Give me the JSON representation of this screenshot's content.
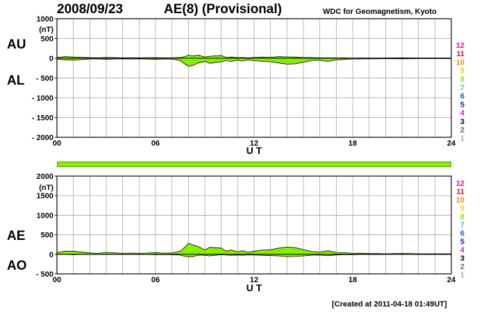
{
  "header": {
    "date": "2008/09/23",
    "title": "AE(8)  (Provisional)",
    "org": "WDC for Geomagnetism, Kyoto"
  },
  "footer": {
    "created": "[Created at 2011-04-18 01:49UT]"
  },
  "colors": {
    "fill": "#88ee00",
    "grid": "#9a9a9a",
    "stack_bar": "#88ee00"
  },
  "legend_colors": [
    "#ee1177",
    "#dd1111",
    "#ee8800",
    "#dddd00",
    "#88ee00",
    "#22ccee",
    "#1155ee",
    "#2222aa",
    "#cc22cc",
    "#000000",
    "#666666",
    "#aaaaaa"
  ],
  "chart_data": [
    {
      "type": "area",
      "panel": "AU/AL",
      "labels": {
        "upper": "AU",
        "lower": "AL"
      },
      "unit": "(nT)",
      "xlabel": "U T",
      "ylim": [
        -2000,
        1000
      ],
      "xlim": [
        0,
        24
      ],
      "x_tick_labels": [
        "00",
        "06",
        "12",
        "18",
        "24"
      ],
      "y_ticks": [
        1000,
        500,
        0,
        -500,
        -1000,
        -1500,
        -2000
      ],
      "y_tick_labels": [
        "1000",
        "500",
        "0",
        "- 500",
        "- 1000",
        "- 1500",
        "- 2000"
      ],
      "legend_labels": [
        "12",
        "11",
        "10",
        "9",
        "8",
        "7",
        "6",
        "5",
        "4",
        "3",
        "2",
        "1"
      ],
      "grid": true,
      "x": [
        0,
        0.5,
        1,
        1.5,
        2,
        2.5,
        3,
        3.5,
        4,
        4.5,
        5,
        5.5,
        6,
        6.5,
        7,
        7.5,
        7.8,
        8,
        8.3,
        8.6,
        9,
        9.3,
        9.6,
        10,
        10.3,
        10.6,
        11,
        11.3,
        11.6,
        12,
        12.5,
        13,
        13.5,
        14,
        14.5,
        15,
        15.5,
        16,
        16.5,
        17,
        17.5,
        18,
        18.5,
        19,
        19.5,
        20,
        21,
        22,
        23,
        24
      ],
      "series": [
        {
          "name": "AU",
          "values": [
            20,
            40,
            30,
            25,
            15,
            10,
            20,
            15,
            10,
            12,
            10,
            12,
            15,
            10,
            10,
            20,
            40,
            80,
            60,
            80,
            30,
            50,
            60,
            70,
            20,
            30,
            15,
            20,
            10,
            20,
            30,
            25,
            40,
            35,
            30,
            20,
            15,
            10,
            10,
            8,
            10,
            5,
            8,
            5,
            5,
            5,
            10,
            5,
            5,
            5
          ]
        },
        {
          "name": "AL",
          "values": [
            -20,
            -40,
            -50,
            -30,
            -20,
            -15,
            -30,
            -20,
            -15,
            -20,
            -15,
            -20,
            -30,
            -20,
            -25,
            -60,
            -150,
            -200,
            -180,
            -120,
            -80,
            -130,
            -110,
            -90,
            -60,
            -80,
            -50,
            -70,
            -40,
            -60,
            -80,
            -90,
            -120,
            -150,
            -140,
            -100,
            -60,
            -50,
            -80,
            -40,
            -30,
            -20,
            -20,
            -15,
            -15,
            -10,
            -15,
            -10,
            -10,
            -10
          ]
        }
      ]
    },
    {
      "type": "area",
      "panel": "AE/AO",
      "labels": {
        "upper": "AE",
        "lower": "AO"
      },
      "unit": "(nT)",
      "xlabel": "U T",
      "ylim": [
        -500,
        2000
      ],
      "xlim": [
        0,
        24
      ],
      "x_tick_labels": [
        "00",
        "06",
        "12",
        "18",
        "24"
      ],
      "y_ticks": [
        2000,
        1500,
        1000,
        500,
        0,
        -500
      ],
      "y_tick_labels": [
        "2000",
        "1500",
        "1000",
        "500",
        "0",
        "- 500"
      ],
      "legend_labels": [
        "12",
        "11",
        "10",
        "9",
        "8",
        "7",
        "6",
        "5",
        "4",
        "3",
        "2",
        "1"
      ],
      "grid": true,
      "x": [
        0,
        0.5,
        1,
        1.5,
        2,
        2.5,
        3,
        3.5,
        4,
        4.5,
        5,
        5.5,
        6,
        6.5,
        7,
        7.5,
        7.8,
        8,
        8.3,
        8.6,
        9,
        9.3,
        9.6,
        10,
        10.3,
        10.6,
        11,
        11.3,
        11.6,
        12,
        12.5,
        13,
        13.5,
        14,
        14.5,
        15,
        15.5,
        16,
        16.5,
        17,
        17.5,
        18,
        18.5,
        19,
        19.5,
        20,
        21,
        22,
        23,
        24
      ],
      "series": [
        {
          "name": "AE",
          "values": [
            40,
            80,
            80,
            55,
            35,
            25,
            50,
            35,
            25,
            32,
            25,
            32,
            45,
            30,
            35,
            80,
            190,
            280,
            240,
            200,
            110,
            180,
            170,
            160,
            80,
            110,
            65,
            90,
            50,
            80,
            110,
            115,
            160,
            185,
            170,
            120,
            75,
            60,
            90,
            48,
            40,
            25,
            28,
            20,
            20,
            15,
            25,
            15,
            15,
            15
          ]
        },
        {
          "name": "AO",
          "values": [
            0,
            0,
            -10,
            -2,
            -3,
            -3,
            -5,
            -3,
            -3,
            -4,
            -3,
            -4,
            -8,
            -5,
            -8,
            -20,
            -55,
            -60,
            -60,
            -20,
            -25,
            -40,
            -25,
            -10,
            -20,
            -25,
            -18,
            -25,
            -15,
            -20,
            -25,
            -33,
            -40,
            -58,
            -55,
            -40,
            -23,
            -20,
            -35,
            -16,
            -10,
            -8,
            -6,
            -5,
            -5,
            -3,
            -3,
            -3,
            -3,
            -3
          ]
        }
      ]
    }
  ]
}
